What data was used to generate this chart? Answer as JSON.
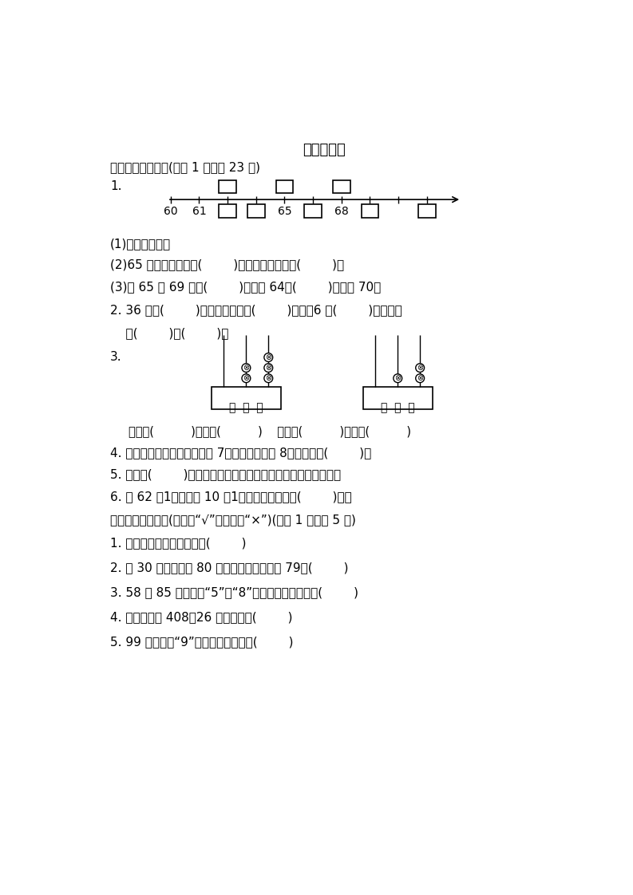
{
  "title": "期中检测卷",
  "background": "#ffffff",
  "section1_header": "一、认真填一填。(每空 1 分，共 23 分)",
  "q1_label": "1.",
  "q1_sub1": "(1)按顺序填数。",
  "q1_sub2": "(2)65 前面的一个数是(        )，后面的一个数是(        )。",
  "q1_sub3": "(3)在 65 和 69 中，(        )更接近 64，(        )更接近 70。",
  "q2_line1": "2. 36 中的(        )在十位上，表示(        )个十，6 在(        )位上，表",
  "q2_line2": "    示(        )个(        )。",
  "q3_label": "3.",
  "q3_write": "写作：(          )读作：(          )    写作：(          )读作：(          )",
  "q4": "4. 一个两位数，十位上的数是 7，个位上的数是 8，这个数是(        )。",
  "q5": "5. 至少用(        )个完全相同的小正方形可以拼成一个大正方形。",
  "q6": "6. 有 62 题1糖果，每 10 题1装一袋，可以装满(        )袋。",
  "section2_header": "二、智慧轨一轨。(对的画“√”，错的画“×”)(每题 1 分，共 5 分)",
  "s2q1": "1. 读数和写数都从高位起。(        )",
  "s2q2": "2. 比 30 多得多，比 80 少一些的数，一定是 79。(        )",
  "s2q3": "3. 58 和 85 都有数字“5”和“8”，所以它们一样大。(        )",
  "s2q4": "4. 四十八写作 408，26 读作二六。(        )",
  "s2q5": "5. 99 中的两个“9”表示的意义一样。(        )",
  "abacus1_beads": [
    0,
    2,
    3
  ],
  "abacus2_beads": [
    0,
    1,
    2
  ],
  "abacus_label": "百  十  个"
}
